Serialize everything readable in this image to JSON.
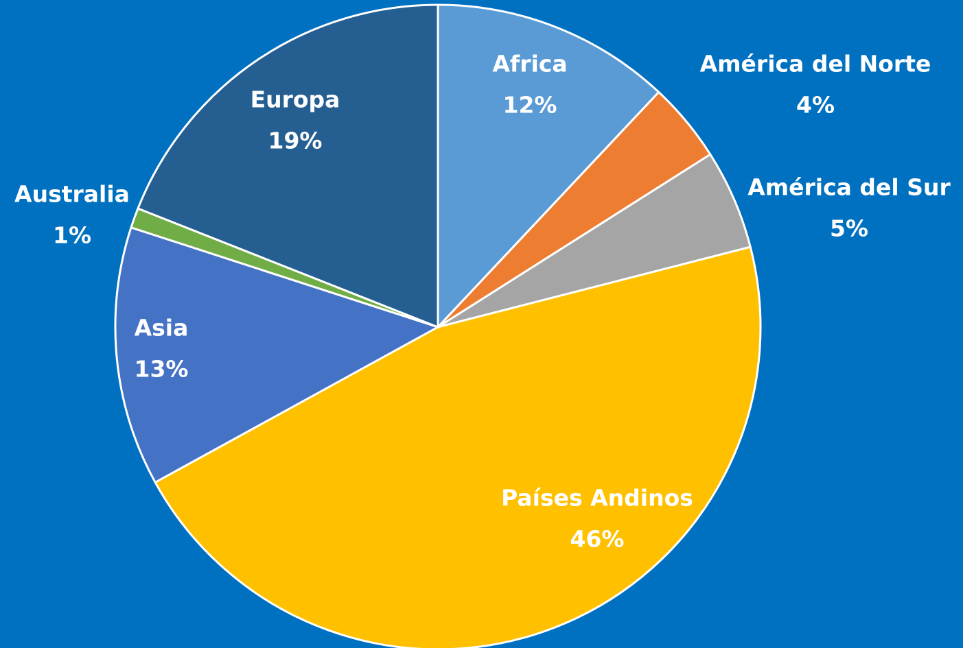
{
  "chart_data": {
    "type": "pie",
    "categories": [
      "Africa",
      "América del Norte",
      "América del Sur",
      "Países Andinos",
      "Asia",
      "Australia",
      "Europa"
    ],
    "values": [
      12,
      4,
      5,
      46,
      13,
      1,
      19
    ],
    "value_labels": [
      "12%",
      "4%",
      "5%",
      "46%",
      "13%",
      "1%",
      "19%"
    ],
    "colors": [
      "#5b9bd5",
      "#ed7d31",
      "#a5a5a5",
      "#ffc000",
      "#4472c4",
      "#70ad47",
      "#255e91"
    ]
  }
}
